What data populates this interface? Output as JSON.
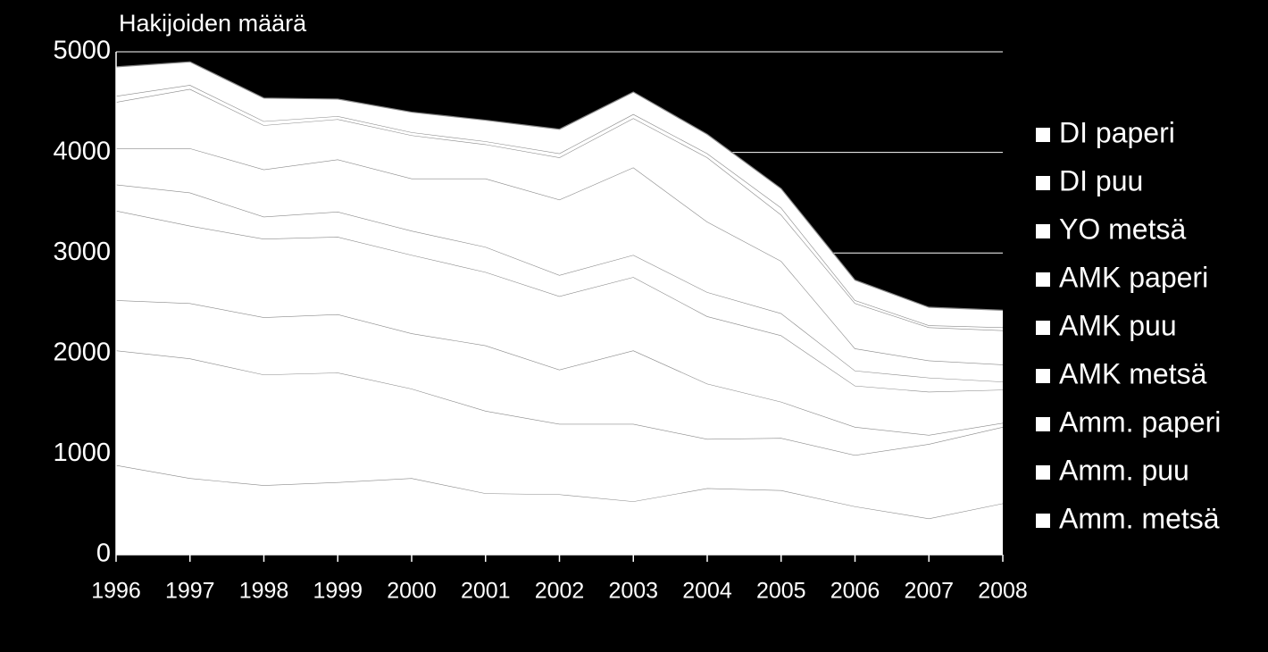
{
  "chart_data": {
    "type": "stacked-area",
    "title": "Hakijoiden määrä",
    "categories": [
      "1996",
      "1997",
      "1998",
      "1999",
      "2000",
      "2001",
      "2002",
      "2003",
      "2004",
      "2005",
      "2006",
      "2007",
      "2008"
    ],
    "series": [
      {
        "name": "DI paperi",
        "color": "#ffffff",
        "values": [
          290,
          230,
          230,
          170,
          200,
          210,
          240,
          220,
          190,
          190,
          200,
          180,
          170
        ]
      },
      {
        "name": "DI puu",
        "color": "#ffffff",
        "values": [
          60,
          40,
          40,
          30,
          30,
          30,
          40,
          40,
          40,
          70,
          30,
          20,
          30
        ]
      },
      {
        "name": "YO metsä",
        "color": "#ffffff",
        "values": [
          460,
          590,
          440,
          400,
          430,
          340,
          420,
          490,
          640,
          460,
          450,
          330,
          340
        ]
      },
      {
        "name": "AMK paperi",
        "color": "#ffffff",
        "values": [
          360,
          440,
          470,
          520,
          520,
          680,
          750,
          870,
          700,
          520,
          220,
          170,
          170
        ]
      },
      {
        "name": "AMK puu",
        "color": "#ffffff",
        "values": [
          260,
          330,
          220,
          250,
          240,
          250,
          210,
          220,
          240,
          220,
          150,
          140,
          80
        ]
      },
      {
        "name": "AMK metsä",
        "color": "#ffffff",
        "values": [
          890,
          770,
          780,
          770,
          780,
          730,
          730,
          730,
          670,
          660,
          410,
          430,
          330
        ]
      },
      {
        "name": "Amm. paperi",
        "color": "#ffffff",
        "values": [
          500,
          550,
          570,
          580,
          550,
          650,
          540,
          730,
          550,
          360,
          280,
          90,
          40
        ]
      },
      {
        "name": "Amm. puu",
        "color": "#ffffff",
        "values": [
          1140,
          1190,
          1100,
          1090,
          890,
          820,
          700,
          770,
          490,
          520,
          510,
          740,
          760
        ]
      },
      {
        "name": "Amm. metsä",
        "color": "#ffffff",
        "values": [
          890,
          760,
          690,
          720,
          760,
          610,
          600,
          530,
          660,
          640,
          480,
          360,
          510
        ]
      }
    ],
    "ylim": [
      0,
      5000
    ],
    "yticks": [
      0,
      1000,
      2000,
      3000,
      4000,
      5000
    ],
    "grid": true,
    "legend": "right"
  }
}
